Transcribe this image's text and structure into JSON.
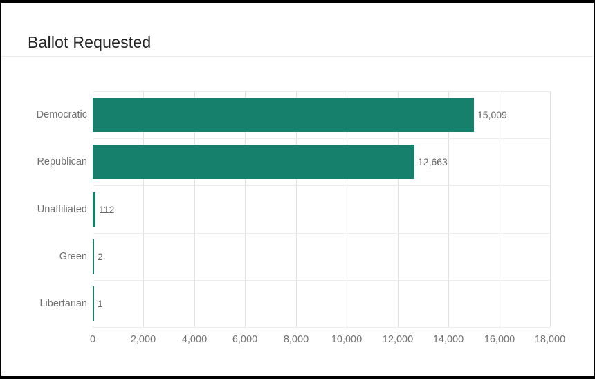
{
  "page": {
    "title": "Ballot Requested"
  },
  "colors": {
    "bar": "#17806D",
    "border": "#000000",
    "title_text": "#252423",
    "axis_text": "#6f6f6f",
    "value_text": "#666666",
    "gridline": "#e2e2e2",
    "row_gridline": "#ececec",
    "divider": "#ebebeb",
    "background": "#ffffff"
  },
  "chart_data": {
    "type": "bar",
    "orientation": "horizontal",
    "title": "Ballot Requested",
    "xlabel": "",
    "ylabel": "",
    "categories": [
      "Democratic",
      "Republican",
      "Unaffiliated",
      "Green",
      "Libertarian"
    ],
    "values": [
      15009,
      12663,
      112,
      2,
      1
    ],
    "value_labels": [
      "15,009",
      "12,663",
      "112",
      "2",
      "1"
    ],
    "xlim": [
      0,
      18000
    ],
    "x_ticks": [
      0,
      2000,
      4000,
      6000,
      8000,
      10000,
      12000,
      14000,
      16000,
      18000
    ],
    "x_tick_labels": [
      "0",
      "2,000",
      "4,000",
      "6,000",
      "8,000",
      "10,000",
      "12,000",
      "14,000",
      "16,000",
      "18,000"
    ],
    "grid": true,
    "legend": false,
    "bar_color": "#17806D"
  }
}
